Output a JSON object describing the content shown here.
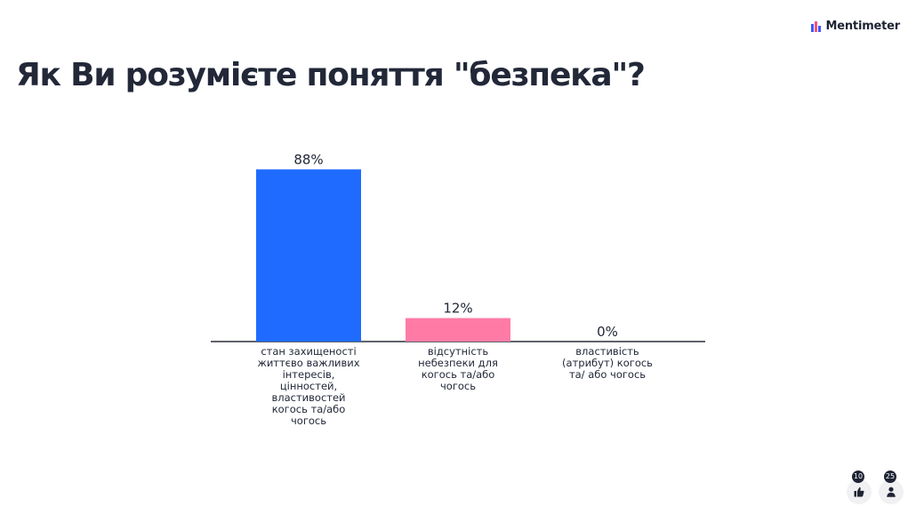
{
  "brand": {
    "name": "Mentimeter"
  },
  "title": "Як Ви розумієте поняття \"безпека\"?",
  "chart_data": {
    "type": "bar",
    "categories": [
      "стан захищеності життєво важливих інтересів, цінностей, властивостей когось та/або чогось",
      "відсутність небезпеки для когось та/або чогось",
      "властивість (атрибут) когось та/ або чогось"
    ],
    "values": [
      88,
      12,
      0
    ],
    "value_labels": [
      "88%",
      "12%",
      "0%"
    ],
    "colors": [
      "#1f6bff",
      "#ff7ba6",
      "#6a5cff"
    ],
    "ylim": [
      0,
      100
    ],
    "grid": false
  },
  "footer": {
    "reactions": {
      "count": "10",
      "icon": "thumbs-up-icon"
    },
    "participants": {
      "count": "25",
      "icon": "person-icon"
    }
  }
}
